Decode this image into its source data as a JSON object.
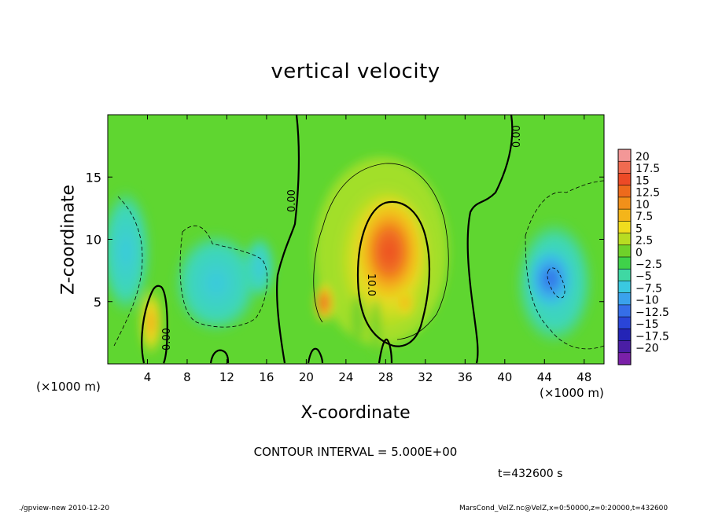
{
  "chart_data": {
    "type": "heatmap",
    "title": "vertical velocity",
    "xlabel": "X-coordinate",
    "ylabel": "Z-coordinate",
    "x_unit_label": "(×1000 m)",
    "x_ticks": [
      4,
      8,
      12,
      16,
      20,
      24,
      28,
      32,
      36,
      40,
      44,
      48
    ],
    "y_ticks": [
      5,
      10,
      15
    ],
    "xlim": [
      0,
      50
    ],
    "ylim": [
      0,
      20
    ],
    "colorbar": {
      "labels": [
        "20",
        "17.5",
        "15",
        "12.5",
        "10",
        "7.5",
        "5",
        "2.5",
        "0",
        "−2.5",
        "−5",
        "−7.5",
        "−10",
        "−12.5",
        "−15",
        "−17.5",
        "−20"
      ],
      "levels": [
        20,
        17.5,
        15,
        12.5,
        10,
        7.5,
        5,
        2.5,
        0,
        -2.5,
        -5,
        -7.5,
        -10,
        -12.5,
        -15,
        -17.5,
        -20
      ],
      "colors": [
        "#f39797",
        "#f06a50",
        "#ec4a26",
        "#ed6a1c",
        "#f1901a",
        "#f4b51a",
        "#f0dd1e",
        "#b8dc22",
        "#6fd12a",
        "#3fd24a",
        "#3fd8a3",
        "#3ac9e0",
        "#3aa2ec",
        "#356ee8",
        "#2a45d8",
        "#2424b6",
        "#4a1ea5",
        "#7a20a8"
      ]
    },
    "contour_labels": [
      "0.00",
      "0.00",
      "0.00",
      "10.0"
    ],
    "contour_interval_text": "CONTOUR INTERVAL = 5.000E+00",
    "time_text": "t=432600  s",
    "grid": false
  },
  "footer": {
    "left": "./gpview-new  2010-12-20",
    "right": "MarsCond_VelZ.nc@VelZ,x=0:50000,z=0:20000,t=432600"
  }
}
